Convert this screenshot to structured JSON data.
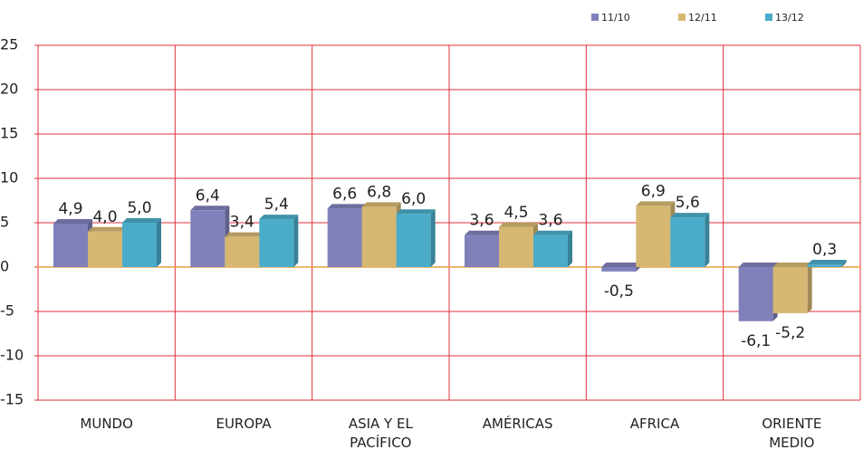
{
  "chart_data": {
    "type": "bar",
    "categories": [
      "MUNDO",
      "EUROPA",
      "ASIA Y EL PACÍFICO",
      "AMÉRICAS",
      "AFRICA",
      "ORIENTE MEDIO"
    ],
    "series": [
      {
        "name": "11/10",
        "color": "#8080bb",
        "values": [
          4.9,
          6.4,
          6.6,
          3.6,
          -0.5,
          -6.1
        ],
        "value_labels": [
          "4,9",
          "6,4",
          "6,6",
          "3,6",
          "-0,5",
          "-6,1"
        ]
      },
      {
        "name": "12/11",
        "color": "#d6b872",
        "values": [
          4.0,
          3.4,
          6.8,
          4.5,
          6.9,
          -5.2
        ],
        "value_labels": [
          "4,0",
          "3,4",
          "6,8",
          "4,5",
          "6,9",
          "-5,2"
        ]
      },
      {
        "name": "13/12",
        "color": "#4bacc9",
        "values": [
          5.0,
          5.4,
          6.0,
          3.6,
          5.6,
          0.3
        ],
        "value_labels": [
          "5,0",
          "5,4",
          "6,0",
          "3,6",
          "5,6",
          "0,3"
        ]
      }
    ],
    "ylim": [
      -15,
      25
    ],
    "yticks": [
      -15,
      -10,
      -5,
      0,
      5,
      10,
      15,
      20,
      25
    ],
    "grid": true,
    "legend": "top-right"
  }
}
